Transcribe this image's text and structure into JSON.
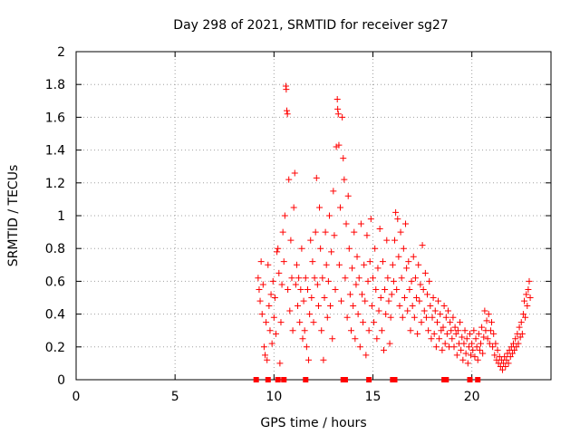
{
  "chart_data": {
    "type": "scatter",
    "title": "Day 298 of 2021, SRMTID for receiver sg27",
    "xlabel": "GPS time / hours",
    "ylabel": "SRMTID / TECUs",
    "xlim": [
      0,
      24
    ],
    "ylim": [
      0,
      2
    ],
    "xticks": [
      "0",
      "5",
      "10",
      "15",
      "20"
    ],
    "xtick_values": [
      0,
      5,
      10,
      15,
      20
    ],
    "yticks": [
      "0",
      "0.2",
      "0.4",
      "0.6",
      "0.8",
      "1",
      "1.2",
      "1.4",
      "1.6",
      "1.8",
      "2"
    ],
    "ytick_values": [
      0,
      0.2,
      0.4,
      0.6,
      0.8,
      1.0,
      1.2,
      1.4,
      1.6,
      1.8,
      2.0
    ],
    "grid": true,
    "marker": "+",
    "color": "#ff0000",
    "series": [
      {
        "name": "SRMTID",
        "points": [
          [
            9.2,
            0.62
          ],
          [
            9.25,
            0.55
          ],
          [
            9.3,
            0.48
          ],
          [
            9.35,
            0.72
          ],
          [
            9.4,
            0.4
          ],
          [
            9.45,
            0.58
          ],
          [
            9.5,
            0.2
          ],
          [
            9.55,
            0.15
          ],
          [
            9.6,
            0.35
          ],
          [
            9.65,
            0.12
          ],
          [
            9.7,
            0.7
          ],
          [
            9.75,
            0.45
          ],
          [
            9.8,
            0.3
          ],
          [
            9.85,
            0.52
          ],
          [
            9.9,
            0.22
          ],
          [
            9.95,
            0.6
          ],
          [
            10.0,
            0.38
          ],
          [
            10.05,
            0.5
          ],
          [
            10.1,
            0.28
          ],
          [
            10.15,
            0.78
          ],
          [
            10.2,
            0.8
          ],
          [
            10.25,
            0.65
          ],
          [
            10.3,
            0.1
          ],
          [
            10.35,
            0.35
          ],
          [
            10.4,
            0.58
          ],
          [
            10.45,
            0.9
          ],
          [
            10.5,
            0.72
          ],
          [
            10.55,
            1.0
          ],
          [
            10.6,
            1.79
          ],
          [
            10.62,
            1.77
          ],
          [
            10.65,
            1.64
          ],
          [
            10.68,
            1.62
          ],
          [
            10.7,
            0.55
          ],
          [
            10.75,
            1.22
          ],
          [
            10.8,
            0.42
          ],
          [
            10.85,
            0.85
          ],
          [
            10.9,
            0.62
          ],
          [
            10.95,
            0.3
          ],
          [
            11.0,
            1.05
          ],
          [
            11.05,
            1.26
          ],
          [
            11.1,
            0.58
          ],
          [
            11.15,
            0.7
          ],
          [
            11.2,
            0.45
          ],
          [
            11.25,
            0.62
          ],
          [
            11.3,
            0.35
          ],
          [
            11.35,
            0.55
          ],
          [
            11.4,
            0.8
          ],
          [
            11.45,
            0.25
          ],
          [
            11.5,
            0.48
          ],
          [
            11.55,
            0.3
          ],
          [
            11.6,
            0.62
          ],
          [
            11.65,
            0.2
          ],
          [
            11.7,
            0.55
          ],
          [
            11.75,
            0.12
          ],
          [
            11.8,
            0.4
          ],
          [
            11.85,
            0.85
          ],
          [
            11.9,
            0.5
          ],
          [
            11.95,
            0.72
          ],
          [
            12.0,
            0.35
          ],
          [
            12.05,
            0.62
          ],
          [
            12.1,
            0.9
          ],
          [
            12.15,
            1.23
          ],
          [
            12.2,
            0.58
          ],
          [
            12.25,
            0.45
          ],
          [
            12.3,
            1.05
          ],
          [
            12.35,
            0.8
          ],
          [
            12.4,
            0.3
          ],
          [
            12.45,
            0.62
          ],
          [
            12.5,
            0.12
          ],
          [
            12.55,
            0.5
          ],
          [
            12.6,
            0.9
          ],
          [
            12.65,
            0.7
          ],
          [
            12.7,
            0.38
          ],
          [
            12.75,
            0.6
          ],
          [
            12.8,
            1.0
          ],
          [
            12.85,
            0.45
          ],
          [
            12.9,
            0.78
          ],
          [
            12.95,
            0.25
          ],
          [
            13.0,
            1.15
          ],
          [
            13.05,
            0.88
          ],
          [
            13.1,
            0.55
          ],
          [
            13.15,
            1.42
          ],
          [
            13.2,
            1.71
          ],
          [
            13.22,
            1.65
          ],
          [
            13.25,
            1.62
          ],
          [
            13.28,
            1.43
          ],
          [
            13.3,
            0.7
          ],
          [
            13.35,
            1.05
          ],
          [
            13.4,
            0.48
          ],
          [
            13.45,
            1.6
          ],
          [
            13.5,
            1.35
          ],
          [
            13.55,
            1.22
          ],
          [
            13.6,
            0.62
          ],
          [
            13.65,
            0.95
          ],
          [
            13.7,
            0.38
          ],
          [
            13.75,
            1.12
          ],
          [
            13.8,
            0.8
          ],
          [
            13.85,
            0.52
          ],
          [
            13.9,
            0.3
          ],
          [
            13.95,
            0.68
          ],
          [
            14.0,
            0.45
          ],
          [
            14.05,
            0.9
          ],
          [
            14.1,
            0.25
          ],
          [
            14.15,
            0.58
          ],
          [
            14.2,
            0.75
          ],
          [
            14.25,
            0.4
          ],
          [
            14.3,
            0.62
          ],
          [
            14.35,
            0.2
          ],
          [
            14.4,
            0.95
          ],
          [
            14.45,
            0.52
          ],
          [
            14.5,
            0.35
          ],
          [
            14.55,
            0.7
          ],
          [
            14.6,
            0.48
          ],
          [
            14.65,
            0.15
          ],
          [
            14.7,
            0.88
          ],
          [
            14.75,
            0.6
          ],
          [
            14.8,
            0.3
          ],
          [
            14.85,
            0.72
          ],
          [
            14.9,
            0.98
          ],
          [
            14.95,
            0.45
          ],
          [
            15.0,
            0.62
          ],
          [
            15.05,
            0.35
          ],
          [
            15.1,
            0.8
          ],
          [
            15.15,
            0.55
          ],
          [
            15.2,
            0.25
          ],
          [
            15.25,
            0.68
          ],
          [
            15.3,
            0.42
          ],
          [
            15.35,
            0.92
          ],
          [
            15.4,
            0.5
          ],
          [
            15.45,
            0.3
          ],
          [
            15.5,
            0.72
          ],
          [
            15.55,
            0.18
          ],
          [
            15.6,
            0.55
          ],
          [
            15.65,
            0.4
          ],
          [
            15.7,
            0.85
          ],
          [
            15.75,
            0.62
          ],
          [
            15.8,
            0.48
          ],
          [
            15.85,
            0.22
          ],
          [
            15.9,
            0.38
          ],
          [
            15.95,
            0.52
          ],
          [
            16.0,
            0.7
          ],
          [
            16.05,
            0.6
          ],
          [
            16.1,
            0.85
          ],
          [
            16.15,
            1.02
          ],
          [
            16.2,
            0.55
          ],
          [
            16.25,
            0.98
          ],
          [
            16.3,
            0.75
          ],
          [
            16.35,
            0.45
          ],
          [
            16.4,
            0.9
          ],
          [
            16.45,
            0.62
          ],
          [
            16.5,
            0.38
          ],
          [
            16.55,
            0.8
          ],
          [
            16.6,
            0.5
          ],
          [
            16.65,
            0.95
          ],
          [
            16.7,
            0.68
          ],
          [
            16.75,
            0.42
          ],
          [
            16.8,
            0.72
          ],
          [
            16.85,
            0.55
          ],
          [
            16.9,
            0.3
          ],
          [
            16.95,
            0.6
          ],
          [
            17.0,
            0.45
          ],
          [
            17.05,
            0.75
          ],
          [
            17.1,
            0.38
          ],
          [
            17.15,
            0.62
          ],
          [
            17.2,
            0.5
          ],
          [
            17.25,
            0.28
          ],
          [
            17.3,
            0.7
          ],
          [
            17.35,
            0.48
          ],
          [
            17.4,
            0.58
          ],
          [
            17.45,
            0.35
          ],
          [
            17.5,
            0.82
          ],
          [
            17.55,
            0.55
          ],
          [
            17.6,
            0.42
          ],
          [
            17.65,
            0.65
          ],
          [
            17.7,
            0.38
          ],
          [
            17.75,
            0.52
          ],
          [
            17.8,
            0.3
          ],
          [
            17.85,
            0.6
          ],
          [
            17.9,
            0.45
          ],
          [
            17.95,
            0.25
          ],
          [
            18.0,
            0.38
          ],
          [
            18.05,
            0.5
          ],
          [
            18.1,
            0.28
          ],
          [
            18.15,
            0.42
          ],
          [
            18.2,
            0.2
          ],
          [
            18.25,
            0.35
          ],
          [
            18.3,
            0.48
          ],
          [
            18.35,
            0.25
          ],
          [
            18.4,
            0.4
          ],
          [
            18.45,
            0.3
          ],
          [
            18.5,
            0.18
          ],
          [
            18.55,
            0.32
          ],
          [
            18.6,
            0.45
          ],
          [
            18.65,
            0.22
          ],
          [
            18.7,
            0.38
          ],
          [
            18.75,
            0.28
          ],
          [
            18.8,
            0.42
          ],
          [
            18.85,
            0.2
          ],
          [
            18.9,
            0.35
          ],
          [
            18.95,
            0.3
          ],
          [
            19.0,
            0.25
          ],
          [
            19.05,
            0.38
          ],
          [
            19.1,
            0.2
          ],
          [
            19.15,
            0.32
          ],
          [
            19.2,
            0.28
          ],
          [
            19.25,
            0.15
          ],
          [
            19.3,
            0.3
          ],
          [
            19.35,
            0.22
          ],
          [
            19.4,
            0.35
          ],
          [
            19.45,
            0.18
          ],
          [
            19.5,
            0.26
          ],
          [
            19.55,
            0.12
          ],
          [
            19.6,
            0.22
          ],
          [
            19.65,
            0.3
          ],
          [
            19.7,
            0.16
          ],
          [
            19.75,
            0.25
          ],
          [
            19.8,
            0.1
          ],
          [
            19.85,
            0.2
          ],
          [
            19.9,
            0.28
          ],
          [
            19.95,
            0.15
          ],
          [
            20.0,
            0.22
          ],
          [
            20.05,
            0.18
          ],
          [
            20.1,
            0.3
          ],
          [
            20.15,
            0.14
          ],
          [
            20.2,
            0.25
          ],
          [
            20.25,
            0.2
          ],
          [
            20.3,
            0.12
          ],
          [
            20.35,
            0.28
          ],
          [
            20.4,
            0.18
          ],
          [
            20.45,
            0.22
          ],
          [
            20.5,
            0.32
          ],
          [
            20.55,
            0.16
          ],
          [
            20.6,
            0.26
          ],
          [
            20.65,
            0.42
          ],
          [
            20.7,
            0.3
          ],
          [
            20.75,
            0.36
          ],
          [
            20.8,
            0.25
          ],
          [
            20.85,
            0.4
          ],
          [
            20.9,
            0.22
          ],
          [
            20.95,
            0.3
          ],
          [
            21.0,
            0.35
          ],
          [
            21.05,
            0.2
          ],
          [
            21.1,
            0.28
          ],
          [
            21.15,
            0.15
          ],
          [
            21.2,
            0.22
          ],
          [
            21.25,
            0.12
          ],
          [
            21.3,
            0.18
          ],
          [
            21.35,
            0.1
          ],
          [
            21.4,
            0.14
          ],
          [
            21.45,
            0.08
          ],
          [
            21.5,
            0.12
          ],
          [
            21.55,
            0.06
          ],
          [
            21.6,
            0.1
          ],
          [
            21.65,
            0.14
          ],
          [
            21.7,
            0.08
          ],
          [
            21.75,
            0.12
          ],
          [
            21.8,
            0.16
          ],
          [
            21.85,
            0.1
          ],
          [
            21.9,
            0.18
          ],
          [
            21.95,
            0.14
          ],
          [
            22.0,
            0.2
          ],
          [
            22.05,
            0.16
          ],
          [
            22.1,
            0.22
          ],
          [
            22.15,
            0.18
          ],
          [
            22.2,
            0.25
          ],
          [
            22.25,
            0.2
          ],
          [
            22.3,
            0.28
          ],
          [
            22.35,
            0.22
          ],
          [
            22.4,
            0.32
          ],
          [
            22.45,
            0.26
          ],
          [
            22.5,
            0.35
          ],
          [
            22.55,
            0.28
          ],
          [
            22.6,
            0.4
          ],
          [
            22.65,
            0.48
          ],
          [
            22.7,
            0.38
          ],
          [
            22.75,
            0.52
          ],
          [
            22.8,
            0.45
          ],
          [
            22.85,
            0.55
          ],
          [
            22.9,
            0.6
          ],
          [
            22.95,
            0.5
          ]
        ]
      },
      {
        "name": "gaps",
        "marker": "square",
        "points": [
          [
            9.1,
            0
          ],
          [
            9.7,
            0
          ],
          [
            10.2,
            0
          ],
          [
            10.5,
            0
          ],
          [
            11.6,
            0
          ],
          [
            13.5,
            0
          ],
          [
            13.6,
            0
          ],
          [
            14.8,
            0
          ],
          [
            16.0,
            0
          ],
          [
            16.1,
            0
          ],
          [
            18.6,
            0
          ],
          [
            18.7,
            0
          ],
          [
            19.9,
            0
          ],
          [
            20.3,
            0
          ]
        ]
      }
    ]
  }
}
